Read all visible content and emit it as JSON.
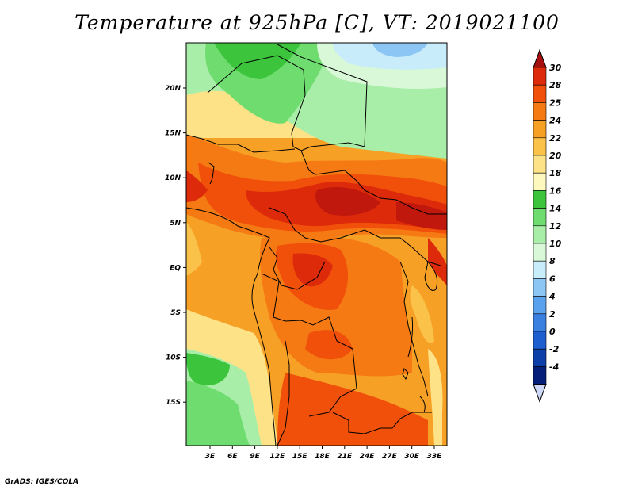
{
  "title": "Temperature at 925hPa [C], VT: 2019021100",
  "credit": "GrADS: IGES/COLA",
  "lon_labels": [
    "3E",
    "6E",
    "9E",
    "12E",
    "15E",
    "18E",
    "21E",
    "24E",
    "27E",
    "30E",
    "33E"
  ],
  "lat_labels": [
    "20N",
    "15N",
    "10N",
    "5N",
    "EQ",
    "5S",
    "10S",
    "15S"
  ],
  "colorbar": {
    "labels": [
      "30",
      "28",
      "25",
      "24",
      "22",
      "20",
      "18",
      "16",
      "14",
      "12",
      "10",
      "8",
      "6",
      "4",
      "2",
      "0",
      "-2",
      "-4"
    ],
    "colors": [
      "#a50f0f",
      "#dc2a0a",
      "#f0500a",
      "#f57a14",
      "#f7a026",
      "#fbc24a",
      "#fde287",
      "#fdf8bd",
      "#3cc53c",
      "#6fdc6f",
      "#a8eea8",
      "#d8f8d8",
      "#c8ecfa",
      "#8cc6f5",
      "#5aa2ed",
      "#3a80e0",
      "#1e5fd0",
      "#0c3fa8",
      "#06207a",
      "#cfd8f6"
    ]
  },
  "legend_colors": {
    "hot": "#dc2a0a",
    "warm": "#f57a14",
    "mild": "#fbc24a",
    "cool_green": "#6fdc6f",
    "cold_blue": "#a0d0f8",
    "background": "#f7a026"
  }
}
